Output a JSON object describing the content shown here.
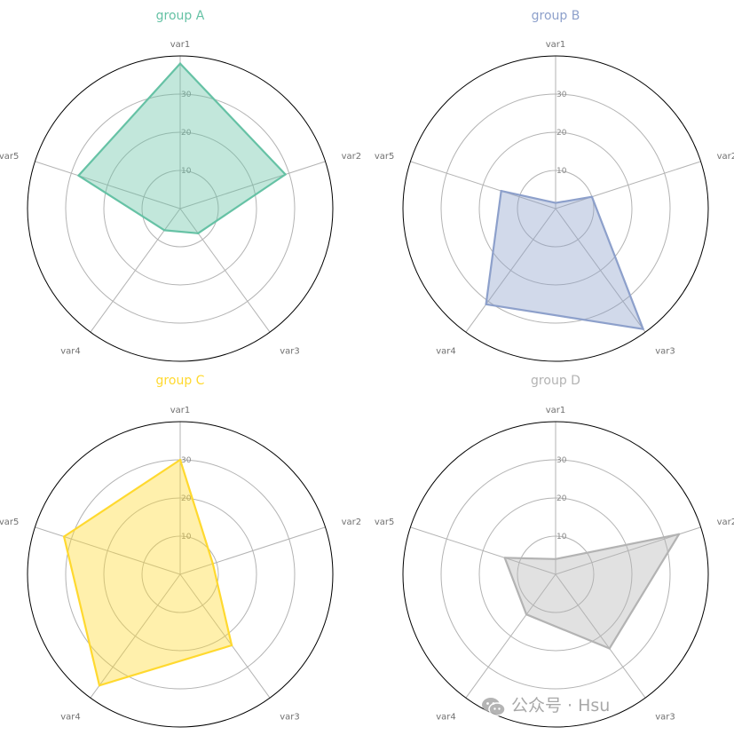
{
  "watermark": {
    "text": "公众号 · Hsu"
  },
  "colors": {
    "axis": "#b3b3b3",
    "frame": "#000000",
    "tick_text": "#888888",
    "label_text": "#707070"
  },
  "chart_data": [
    {
      "type": "radar",
      "title": "group A",
      "color": "#66c2a5",
      "categories": [
        "var1",
        "var2",
        "var3",
        "var4",
        "var5"
      ],
      "values": [
        38,
        29,
        8,
        7,
        28
      ],
      "rlim": [
        0,
        40
      ],
      "rticks": [
        10,
        20,
        30
      ],
      "rtick_labels": [
        "10",
        "20",
        "30"
      ]
    },
    {
      "type": "radar",
      "title": "group B",
      "color": "#8da0cb",
      "categories": [
        "var1",
        "var2",
        "var3",
        "var4",
        "var5"
      ],
      "values": [
        1.5,
        10,
        39,
        31,
        15
      ],
      "rlim": [
        0,
        40
      ],
      "rticks": [
        10,
        20,
        30
      ],
      "rtick_labels": [
        "10",
        "20",
        "30"
      ]
    },
    {
      "type": "radar",
      "title": "group C",
      "color": "#ffd92f",
      "categories": [
        "var1",
        "var2",
        "var3",
        "var4",
        "var5"
      ],
      "values": [
        30,
        9,
        23,
        36,
        32
      ],
      "rlim": [
        0,
        40
      ],
      "rticks": [
        10,
        20,
        30
      ],
      "rtick_labels": [
        "10",
        "20",
        "30"
      ]
    },
    {
      "type": "radar",
      "title": "group D",
      "color": "#b3b3b3",
      "categories": [
        "var1",
        "var2",
        "var3",
        "var4",
        "var5"
      ],
      "values": [
        4,
        34,
        24,
        13,
        14
      ],
      "rlim": [
        0,
        40
      ],
      "rticks": [
        10,
        20,
        30
      ],
      "rtick_labels": [
        "10",
        "20",
        "30"
      ]
    }
  ]
}
